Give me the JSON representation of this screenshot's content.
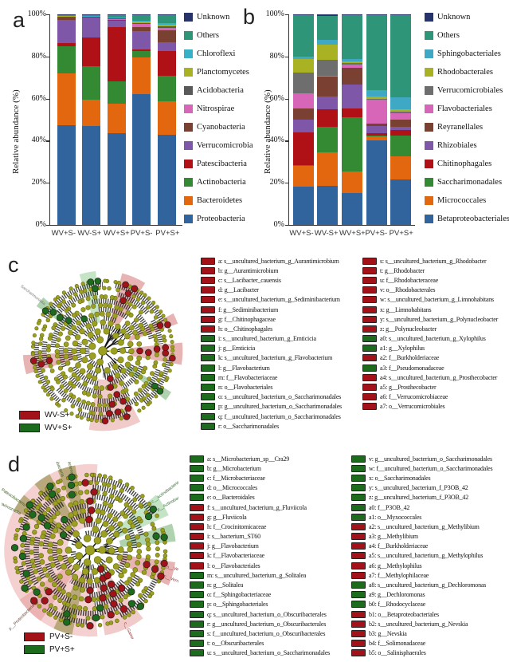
{
  "panel_a": {
    "letter": "a",
    "ylabel": "Relative abundance (%)",
    "yticks": [
      "0%",
      "20%",
      "40%",
      "60%",
      "80%",
      "100%"
    ]
  },
  "panel_b": {
    "letter": "b",
    "ylabel": "Relative abundance (%)",
    "yticks": [
      "0%",
      "20%",
      "40%",
      "60%",
      "80%",
      "100%"
    ]
  },
  "chart_data": [
    {
      "panel": "a",
      "type": "bar",
      "subtype": "stacked-percent",
      "ylabel": "Relative abundance (%)",
      "ylim": [
        0,
        100
      ],
      "yticks": [
        0,
        20,
        40,
        60,
        80,
        100
      ],
      "categories": [
        "WV+S-",
        "WV-S+",
        "WV+S+",
        "PV+S-",
        "PV+S+"
      ],
      "legend_position": "right",
      "legend_order": "reverse-of-stack",
      "series": [
        {
          "name": "Proteobacteria",
          "color": "#31639c",
          "values": [
            47.5,
            47.5,
            44.0,
            62.0,
            42.5
          ]
        },
        {
          "name": "Bacteroidetes",
          "color": "#e2670e",
          "values": [
            24.5,
            12.5,
            14.0,
            17.5,
            16.0
          ]
        },
        {
          "name": "Actinobacteria",
          "color": "#338a33",
          "values": [
            13.0,
            16.0,
            11.0,
            3.0,
            12.0
          ]
        },
        {
          "name": "Patescibacteria",
          "color": "#b01117",
          "values": [
            1.5,
            14.0,
            26.0,
            1.0,
            11.5
          ]
        },
        {
          "name": "Verrucomicrobia",
          "color": "#7e57a8",
          "values": [
            11.0,
            9.5,
            3.0,
            8.5,
            4.5
          ]
        },
        {
          "name": "Cyanobacteria",
          "color": "#7a4032",
          "values": [
            1.0,
            0.2,
            0.5,
            2.0,
            5.5
          ]
        },
        {
          "name": "Nitrospirae",
          "color": "#d765b8",
          "values": [
            0.2,
            0.1,
            0.3,
            1.5,
            1.0
          ]
        },
        {
          "name": "Acidobacteria",
          "color": "#595959",
          "values": [
            0.2,
            0.1,
            0.2,
            0.5,
            1.0
          ]
        },
        {
          "name": "Planctomycetes",
          "color": "#a8b223",
          "values": [
            0.2,
            0.1,
            0.2,
            0.5,
            0.5
          ]
        },
        {
          "name": "Chloroflexi",
          "color": "#38b1c7",
          "values": [
            0.2,
            0.1,
            0.3,
            0.5,
            1.0
          ]
        },
        {
          "name": "Others",
          "color": "#2e9578",
          "values": [
            0.5,
            0.7,
            1.0,
            2.5,
            3.5
          ]
        },
        {
          "name": "Unknown",
          "color": "#27346b",
          "values": [
            0.2,
            0.2,
            0.5,
            0.5,
            0.5
          ]
        }
      ]
    },
    {
      "panel": "b",
      "type": "bar",
      "subtype": "stacked-percent",
      "ylabel": "Relative abundance (%)",
      "ylim": [
        0,
        100
      ],
      "yticks": [
        0,
        20,
        40,
        60,
        80,
        100
      ],
      "categories": [
        "WV+S-",
        "WV-S+",
        "WV+S+",
        "PV+S-",
        "PV+S+"
      ],
      "legend_position": "right",
      "legend_order": "reverse-of-stack",
      "series": [
        {
          "name": "Betaproteobacteriales",
          "color": "#31639c",
          "values": [
            18.0,
            18.5,
            15.0,
            40.0,
            21.5
          ]
        },
        {
          "name": "Micrococcales",
          "color": "#e2670e",
          "values": [
            10.0,
            16.0,
            10.5,
            2.0,
            11.0
          ]
        },
        {
          "name": "Saccharimonadales",
          "color": "#338a33",
          "values": [
            0.5,
            12.0,
            25.5,
            0.5,
            10.0
          ]
        },
        {
          "name": "Chitinophagales",
          "color": "#b01117",
          "values": [
            15.5,
            8.5,
            4.5,
            1.0,
            2.5
          ]
        },
        {
          "name": "Rhizobiales",
          "color": "#7e57a8",
          "values": [
            6.0,
            6.0,
            11.0,
            3.5,
            1.5
          ]
        },
        {
          "name": "Reyranellales",
          "color": "#7a4032",
          "values": [
            5.5,
            9.5,
            8.0,
            1.0,
            3.5
          ]
        },
        {
          "name": "Flavobacteriales",
          "color": "#d765b8",
          "values": [
            7.0,
            0.5,
            1.5,
            11.5,
            3.0
          ]
        },
        {
          "name": "Verrucomicrobiales",
          "color": "#6e6e6e",
          "values": [
            10.0,
            7.5,
            1.0,
            0.5,
            1.0
          ]
        },
        {
          "name": "Rhodobacterales",
          "color": "#a8b223",
          "values": [
            6.5,
            7.0,
            0.5,
            1.0,
            1.0
          ]
        },
        {
          "name": "Sphingobacteriales",
          "color": "#3fa8c4",
          "values": [
            1.0,
            2.5,
            1.5,
            3.0,
            5.5
          ]
        },
        {
          "name": "Others",
          "color": "#2e9578",
          "values": [
            19.7,
            11.3,
            20.5,
            35.5,
            39.0
          ]
        },
        {
          "name": "Unknown",
          "color": "#27346b",
          "values": [
            0.3,
            0.7,
            0.5,
            0.5,
            0.5
          ]
        }
      ]
    }
  ],
  "panel_c": {
    "letter": "c",
    "groups": [
      {
        "label": "WV-S+",
        "color": "#a31218"
      },
      {
        "label": "WV+S+",
        "color": "#1d6b1d"
      }
    ],
    "ray_labels": [
      "c__Saccharimonadia"
    ],
    "legend_col1": [
      {
        "key": "a",
        "color": "#a31218",
        "text": "s__uncultured_bacterium_g_Aurantimicrobium"
      },
      {
        "key": "b",
        "color": "#a31218",
        "text": "g__Aurantimicrobium"
      },
      {
        "key": "c",
        "color": "#a31218",
        "text": "s__Lacibacter_cauensis"
      },
      {
        "key": "d",
        "color": "#a31218",
        "text": "g__Lacibacter"
      },
      {
        "key": "e",
        "color": "#a31218",
        "text": "s__uncultured_bacterium_g_Sediminibacterium"
      },
      {
        "key": "f",
        "color": "#a31218",
        "text": "g__Sediminibacterium"
      },
      {
        "key": "g",
        "color": "#a31218",
        "text": "f__Chitinophagaceae"
      },
      {
        "key": "h",
        "color": "#a31218",
        "text": "o__Chitinophagales"
      },
      {
        "key": "i",
        "color": "#1d6b1d",
        "text": "s__uncultured_bacterium_g_Emticicia"
      },
      {
        "key": "j",
        "color": "#1d6b1d",
        "text": "g__Emticicia"
      },
      {
        "key": "k",
        "color": "#1d6b1d",
        "text": "s__uncultured_bacterium_g_Flavobacterium"
      },
      {
        "key": "l",
        "color": "#1d6b1d",
        "text": "g__Flavobacterium"
      },
      {
        "key": "m",
        "color": "#1d6b1d",
        "text": "f__Flavobacteriaceae"
      },
      {
        "key": "n",
        "color": "#1d6b1d",
        "text": "o__Flavobacteriales"
      },
      {
        "key": "o",
        "color": "#1d6b1d",
        "text": "s__uncultured_bacterium_o_Saccharimonadales"
      },
      {
        "key": "p",
        "color": "#1d6b1d",
        "text": "g__uncultured_bacterium_o_Saccharimonadales"
      },
      {
        "key": "q",
        "color": "#1d6b1d",
        "text": "f__uncultured_bacterium_o_Saccharimonadales"
      },
      {
        "key": "r",
        "color": "#1d6b1d",
        "text": "o__Saccharimonadales"
      }
    ],
    "legend_col2": [
      {
        "key": "s",
        "color": "#a31218",
        "text": "s__uncultured_bacterium_g_Rhodobacter"
      },
      {
        "key": "t",
        "color": "#a31218",
        "text": "g__Rhodobacter"
      },
      {
        "key": "u",
        "color": "#a31218",
        "text": "f__Rhodobacteraceae"
      },
      {
        "key": "v",
        "color": "#a31218",
        "text": "o__Rhodobacterales"
      },
      {
        "key": "w",
        "color": "#a31218",
        "text": "s__uncultured_bacterium_g_Limnohabitans"
      },
      {
        "key": "x",
        "color": "#a31218",
        "text": "g__Limnohabitans"
      },
      {
        "key": "y",
        "color": "#a31218",
        "text": "s__uncultured_bacterium_g_Polynucleobacter"
      },
      {
        "key": "z",
        "color": "#a31218",
        "text": "g__Polynucleobacter"
      },
      {
        "key": "a0",
        "color": "#1d6b1d",
        "text": "s__uncultured_bacterium_g_Xylophilus"
      },
      {
        "key": "a1",
        "color": "#1d6b1d",
        "text": "g__Xylophilus"
      },
      {
        "key": "a2",
        "color": "#a31218",
        "text": "f__Burkholderiaceae"
      },
      {
        "key": "a3",
        "color": "#1d6b1d",
        "text": "f__Pseudomonadaceae"
      },
      {
        "key": "a4",
        "color": "#a31218",
        "text": "s__uncultured_bacterium_g_Prosthecobacter"
      },
      {
        "key": "a5",
        "color": "#a31218",
        "text": "g__Prosthecobacter"
      },
      {
        "key": "a6",
        "color": "#a31218",
        "text": "f__Verrucomicrobiaceae"
      },
      {
        "key": "a7",
        "color": "#a31218",
        "text": "o__Verrucomicrobiales"
      }
    ]
  },
  "panel_d": {
    "letter": "d",
    "groups": [
      {
        "label": "PV+S-",
        "color": "#a31218"
      },
      {
        "label": "PV+S+",
        "color": "#1d6b1d"
      }
    ],
    "ray_labels": [
      "p__Cyanobacteria",
      "c__Melainabacteria",
      "p__Patescibacteria",
      "c__Saccharimonadia",
      "p__Actinobacteria",
      "c__Actinobacteria",
      "p__Verrucomicrobia",
      "c__Verrucomicrobiae",
      "p__Proteobacteria",
      "c__Gammaproteobacteria"
    ],
    "legend_col1": [
      {
        "key": "a",
        "color": "#1d6b1d",
        "text": "s__Microbacterium_sp__Cra29"
      },
      {
        "key": "b",
        "color": "#1d6b1d",
        "text": "g__Microbacterium"
      },
      {
        "key": "c",
        "color": "#1d6b1d",
        "text": "f__Microbacteriaceae"
      },
      {
        "key": "d",
        "color": "#1d6b1d",
        "text": "o__Micrococcales"
      },
      {
        "key": "e",
        "color": "#1d6b1d",
        "text": "o__Bacteroidales"
      },
      {
        "key": "f",
        "color": "#a31218",
        "text": "s__uncultured_bacterium_g_Fluviicola"
      },
      {
        "key": "g",
        "color": "#a31218",
        "text": "g__Fluviicola"
      },
      {
        "key": "h",
        "color": "#a31218",
        "text": "f__Crocinitomicaceae"
      },
      {
        "key": "i",
        "color": "#a31218",
        "text": "s__bacterium_ST60"
      },
      {
        "key": "j",
        "color": "#a31218",
        "text": "g__Flavobacterium"
      },
      {
        "key": "k",
        "color": "#a31218",
        "text": "f__Flavobacteriaceae"
      },
      {
        "key": "l",
        "color": "#a31218",
        "text": "o__Flavobacteriales"
      },
      {
        "key": "m",
        "color": "#1d6b1d",
        "text": "s__uncultured_bacterium_g_Solitalea"
      },
      {
        "key": "n",
        "color": "#1d6b1d",
        "text": "g__Solitalea"
      },
      {
        "key": "o",
        "color": "#1d6b1d",
        "text": "f__Sphingobacteriaceae"
      },
      {
        "key": "p",
        "color": "#1d6b1d",
        "text": "o__Sphingobacteriales"
      },
      {
        "key": "q",
        "color": "#1d6b1d",
        "text": "s__uncultured_bacterium_o_Obscuribacterales"
      },
      {
        "key": "r",
        "color": "#1d6b1d",
        "text": "g__uncultured_bacterium_o_Obscuribacterales"
      },
      {
        "key": "s",
        "color": "#1d6b1d",
        "text": "f__uncultured_bacterium_o_Obscuribacterales"
      },
      {
        "key": "t",
        "color": "#1d6b1d",
        "text": "o__Obscuribacterales"
      },
      {
        "key": "u",
        "color": "#1d6b1d",
        "text": "s__uncultured_bacterium_o_Saccharimonadales"
      }
    ],
    "legend_col2": [
      {
        "key": "v",
        "color": "#1d6b1d",
        "text": "g__uncultured_bacterium_o_Saccharimonadales"
      },
      {
        "key": "w",
        "color": "#1d6b1d",
        "text": "f__uncultured_bacterium_o_Saccharimonadales"
      },
      {
        "key": "x",
        "color": "#1d6b1d",
        "text": "o__Saccharimonadales"
      },
      {
        "key": "y",
        "color": "#1d6b1d",
        "text": "s__uncultured_bacterium_f_P3OB_42"
      },
      {
        "key": "z",
        "color": "#1d6b1d",
        "text": "g__uncultured_bacterium_f_P3OB_42"
      },
      {
        "key": "a0",
        "color": "#1d6b1d",
        "text": "f__P3OB_42"
      },
      {
        "key": "a1",
        "color": "#1d6b1d",
        "text": "o__Myxococcales"
      },
      {
        "key": "a2",
        "color": "#a31218",
        "text": "s__uncultured_bacterium_g_Methylibium"
      },
      {
        "key": "a3",
        "color": "#a31218",
        "text": "g__Methylibium"
      },
      {
        "key": "a4",
        "color": "#a31218",
        "text": "f__Burkholderiaceae"
      },
      {
        "key": "a5",
        "color": "#a31218",
        "text": "s__uncultured_bacterium_g_Methylophilus"
      },
      {
        "key": "a6",
        "color": "#a31218",
        "text": "g__Methylophilus"
      },
      {
        "key": "a7",
        "color": "#a31218",
        "text": "f__Methylophilaceae"
      },
      {
        "key": "a8",
        "color": "#1d6b1d",
        "text": "s__uncultured_bacterium_g_Dechloromonas"
      },
      {
        "key": "a9",
        "color": "#1d6b1d",
        "text": "g__Dechloromonas"
      },
      {
        "key": "b0",
        "color": "#1d6b1d",
        "text": "f__Rhodocyclaceae"
      },
      {
        "key": "b1",
        "color": "#a31218",
        "text": "o__Betaproteobacteriales"
      },
      {
        "key": "b2",
        "color": "#a31218",
        "text": "s__uncultured_bacterium_g_Nevskia"
      },
      {
        "key": "b3",
        "color": "#a31218",
        "text": "g__Nevskia"
      },
      {
        "key": "b4",
        "color": "#a31218",
        "text": "f__Solimonadaceae"
      },
      {
        "key": "b5",
        "color": "#a31218",
        "text": "o__Salinisphaerales"
      }
    ]
  }
}
